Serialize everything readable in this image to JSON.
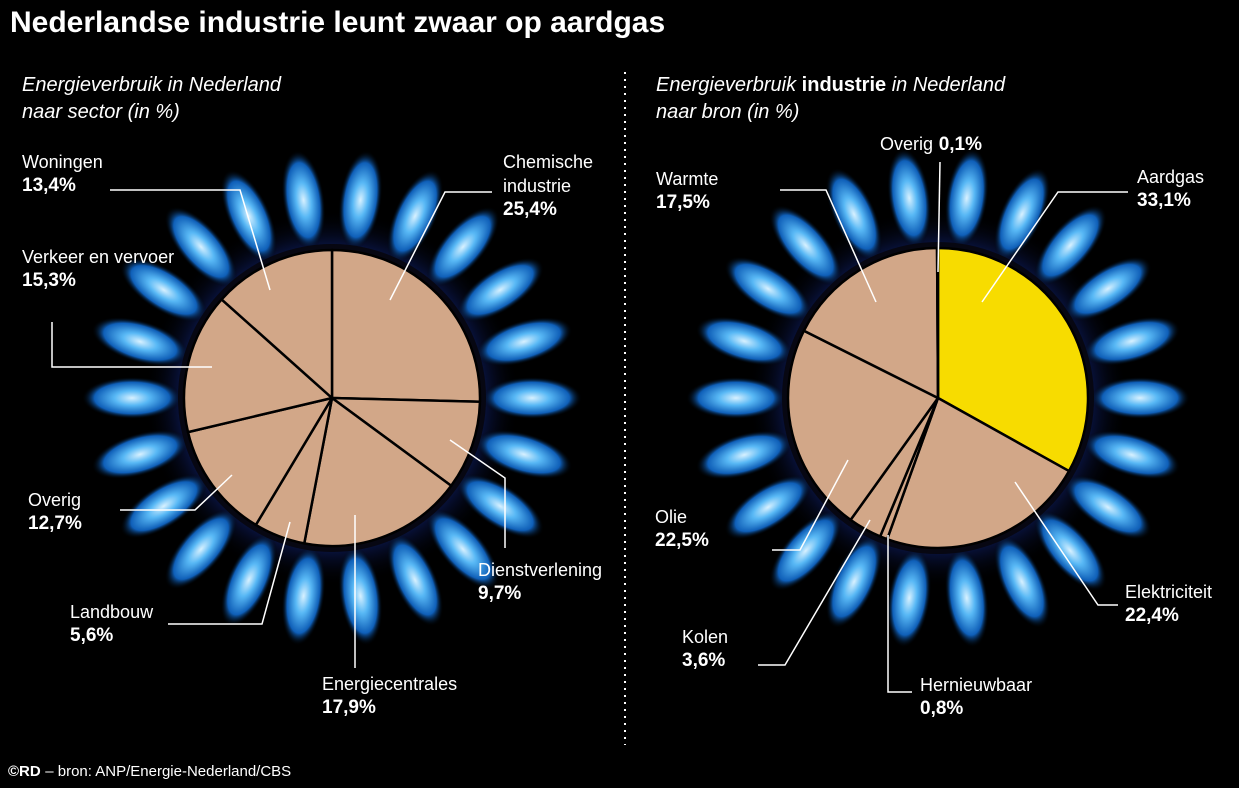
{
  "title": "Nederlandse industrie leunt zwaar op aardgas",
  "credit": "©RD",
  "source": "– bron: ANP/Energie-Nederland/CBS",
  "chart_data": [
    {
      "type": "pie",
      "subtitle": [
        [
          "Energieverbruik in Nederland"
        ],
        [
          "naar sector (in %)"
        ]
      ],
      "categories": [
        "Chemische industrie",
        "Dienstverlening",
        "Energiecentrales",
        "Landbouw",
        "Overig",
        "Verkeer en vervoer",
        "Woningen"
      ],
      "values": [
        25.4,
        9.7,
        17.9,
        5.6,
        12.7,
        15.3,
        13.4
      ],
      "value_labels": [
        "25,4%",
        "9,7%",
        "17,9%",
        "5,6%",
        "12,7%",
        "15,3%",
        "13,4%"
      ],
      "colors": [
        "#d2a788",
        "#d2a788",
        "#d2a788",
        "#d2a788",
        "#d2a788",
        "#d2a788",
        "#d2a788"
      ]
    },
    {
      "type": "pie",
      "subtitle": [
        [
          "Energieverbruik",
          "industrie",
          "in Nederland"
        ],
        [
          "naar bron (in %)"
        ]
      ],
      "categories": [
        "Aardgas",
        "Elektriciteit",
        "Hernieuwbaar",
        "Kolen",
        "Olie",
        "Warmte",
        "Overig"
      ],
      "values": [
        33.1,
        22.4,
        0.8,
        3.6,
        22.5,
        17.5,
        0.1
      ],
      "value_labels": [
        "33,1%",
        "22,4%",
        "0,8%",
        "3,6%",
        "22,5%",
        "17,5%",
        "0,1%"
      ],
      "colors": [
        "#f7dc00",
        "#d2a788",
        "#d2a788",
        "#d2a788",
        "#d2a788",
        "#d2a788",
        "#d2a788"
      ]
    }
  ]
}
